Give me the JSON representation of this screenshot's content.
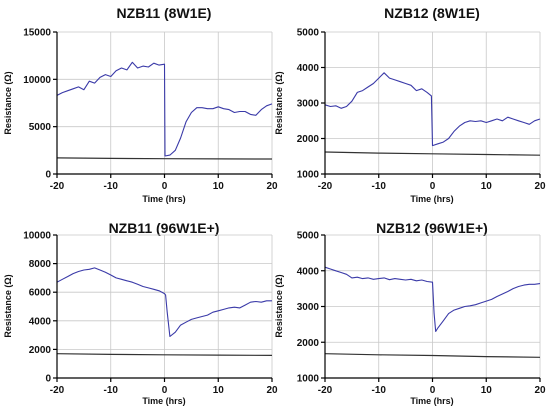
{
  "chart_data": [
    {
      "type": "line",
      "title": "NZB11 (8W1E)",
      "xlabel": "Time (hrs)",
      "ylabel": "Resistance (Ω)",
      "xlim": [
        -20,
        20
      ],
      "ylim": [
        0,
        15000
      ],
      "xticks": [
        -20,
        -10,
        0,
        10,
        20
      ],
      "yticks": [
        0,
        5000,
        10000,
        15000
      ],
      "grid": true,
      "series": [
        {
          "color": "#3a3aa8",
          "points": [
            [
              -20,
              8300
            ],
            [
              -19,
              8600
            ],
            [
              -18,
              8800
            ],
            [
              -17,
              9000
            ],
            [
              -16,
              9200
            ],
            [
              -15,
              8900
            ],
            [
              -14,
              9800
            ],
            [
              -13,
              9600
            ],
            [
              -12,
              10200
            ],
            [
              -11,
              10500
            ],
            [
              -10,
              10300
            ],
            [
              -9,
              10900
            ],
            [
              -8,
              11200
            ],
            [
              -7,
              11000
            ],
            [
              -6,
              11800
            ],
            [
              -5,
              11200
            ],
            [
              -4,
              11400
            ],
            [
              -3,
              11300
            ],
            [
              -2,
              11700
            ],
            [
              -1,
              11500
            ],
            [
              0,
              11600
            ],
            [
              0.1,
              1900
            ],
            [
              1,
              2000
            ],
            [
              2,
              2500
            ],
            [
              3,
              3800
            ],
            [
              4,
              5500
            ],
            [
              5,
              6500
            ],
            [
              6,
              7000
            ],
            [
              7,
              7000
            ],
            [
              8,
              6900
            ],
            [
              9,
              6900
            ],
            [
              10,
              7100
            ],
            [
              11,
              6900
            ],
            [
              12,
              6800
            ],
            [
              13,
              6500
            ],
            [
              14,
              6600
            ],
            [
              15,
              6600
            ],
            [
              16,
              6300
            ],
            [
              17,
              6200
            ],
            [
              18,
              6800
            ],
            [
              19,
              7200
            ],
            [
              20,
              7400
            ]
          ]
        },
        {
          "color": "#333333",
          "points": [
            [
              -20,
              1700
            ],
            [
              -10,
              1650
            ],
            [
              0,
              1620
            ],
            [
              10,
              1600
            ],
            [
              20,
              1580
            ]
          ]
        }
      ]
    },
    {
      "type": "line",
      "title": "NZB12 (8W1E)",
      "xlabel": "Time (hrs)",
      "ylabel": "Resistance (Ω)",
      "xlim": [
        -20,
        20
      ],
      "ylim": [
        1000,
        5000
      ],
      "xticks": [
        -20,
        -10,
        0,
        10,
        20
      ],
      "yticks": [
        1000,
        2000,
        3000,
        4000,
        5000
      ],
      "grid": true,
      "series": [
        {
          "color": "#3a3aa8",
          "points": [
            [
              -20,
              2950
            ],
            [
              -19,
              2900
            ],
            [
              -18,
              2920
            ],
            [
              -17,
              2850
            ],
            [
              -16,
              2900
            ],
            [
              -15,
              3050
            ],
            [
              -14,
              3300
            ],
            [
              -13,
              3350
            ],
            [
              -12,
              3450
            ],
            [
              -11,
              3550
            ],
            [
              -10,
              3700
            ],
            [
              -9,
              3850
            ],
            [
              -8,
              3700
            ],
            [
              -7,
              3650
            ],
            [
              -6,
              3600
            ],
            [
              -5,
              3550
            ],
            [
              -4,
              3500
            ],
            [
              -3,
              3350
            ],
            [
              -2,
              3400
            ],
            [
              -1,
              3300
            ],
            [
              -0.2,
              3200
            ],
            [
              0,
              1800
            ],
            [
              1,
              1850
            ],
            [
              2,
              1900
            ],
            [
              3,
              2000
            ],
            [
              4,
              2200
            ],
            [
              5,
              2350
            ],
            [
              6,
              2450
            ],
            [
              7,
              2500
            ],
            [
              8,
              2480
            ],
            [
              9,
              2500
            ],
            [
              10,
              2450
            ],
            [
              11,
              2500
            ],
            [
              12,
              2550
            ],
            [
              13,
              2500
            ],
            [
              14,
              2600
            ],
            [
              15,
              2550
            ],
            [
              16,
              2500
            ],
            [
              17,
              2450
            ],
            [
              18,
              2400
            ],
            [
              19,
              2500
            ],
            [
              20,
              2550
            ]
          ]
        },
        {
          "color": "#333333",
          "points": [
            [
              -20,
              1620
            ],
            [
              -10,
              1590
            ],
            [
              0,
              1570
            ],
            [
              10,
              1550
            ],
            [
              20,
              1530
            ]
          ]
        }
      ]
    },
    {
      "type": "line",
      "title": "NZB11 (96W1E+)",
      "xlabel": "Time (hrs)",
      "ylabel": "Resistance (Ω)",
      "xlim": [
        -20,
        20
      ],
      "ylim": [
        0,
        10000
      ],
      "xticks": [
        -20,
        -10,
        0,
        10,
        20
      ],
      "yticks": [
        0,
        2000,
        4000,
        6000,
        8000,
        10000
      ],
      "grid": true,
      "series": [
        {
          "color": "#3a3aa8",
          "points": [
            [
              -20,
              6700
            ],
            [
              -19,
              6900
            ],
            [
              -18,
              7100
            ],
            [
              -17,
              7300
            ],
            [
              -16,
              7450
            ],
            [
              -15,
              7550
            ],
            [
              -14,
              7600
            ],
            [
              -13,
              7700
            ],
            [
              -12,
              7550
            ],
            [
              -11,
              7400
            ],
            [
              -10,
              7200
            ],
            [
              -9,
              7000
            ],
            [
              -8,
              6900
            ],
            [
              -7,
              6800
            ],
            [
              -6,
              6700
            ],
            [
              -5,
              6550
            ],
            [
              -4,
              6400
            ],
            [
              -3,
              6300
            ],
            [
              -2,
              6200
            ],
            [
              -1,
              6100
            ],
            [
              0,
              5900
            ],
            [
              0.2,
              5800
            ],
            [
              0.5,
              4600
            ],
            [
              1,
              2900
            ],
            [
              2,
              3200
            ],
            [
              3,
              3700
            ],
            [
              4,
              3900
            ],
            [
              5,
              4100
            ],
            [
              6,
              4200
            ],
            [
              7,
              4300
            ],
            [
              8,
              4400
            ],
            [
              9,
              4600
            ],
            [
              10,
              4700
            ],
            [
              11,
              4800
            ],
            [
              12,
              4900
            ],
            [
              13,
              4950
            ],
            [
              14,
              4900
            ],
            [
              15,
              5100
            ],
            [
              16,
              5300
            ],
            [
              17,
              5350
            ],
            [
              18,
              5300
            ],
            [
              19,
              5400
            ],
            [
              20,
              5400
            ]
          ]
        },
        {
          "color": "#333333",
          "points": [
            [
              -20,
              1700
            ],
            [
              -10,
              1650
            ],
            [
              0,
              1620
            ],
            [
              10,
              1600
            ],
            [
              20,
              1580
            ]
          ]
        }
      ]
    },
    {
      "type": "line",
      "title": "NZB12 (96W1E+)",
      "xlabel": "Time (hrs)",
      "ylabel": "Resistance (Ω)",
      "xlim": [
        -20,
        20
      ],
      "ylim": [
        1000,
        5000
      ],
      "xticks": [
        -20,
        -10,
        0,
        10,
        20
      ],
      "yticks": [
        1000,
        2000,
        3000,
        4000,
        5000
      ],
      "grid": true,
      "series": [
        {
          "color": "#3a3aa8",
          "points": [
            [
              -20,
              4100
            ],
            [
              -19,
              4050
            ],
            [
              -18,
              4000
            ],
            [
              -17,
              3950
            ],
            [
              -16,
              3900
            ],
            [
              -15,
              3800
            ],
            [
              -14,
              3820
            ],
            [
              -13,
              3780
            ],
            [
              -12,
              3800
            ],
            [
              -11,
              3760
            ],
            [
              -10,
              3780
            ],
            [
              -9,
              3800
            ],
            [
              -8,
              3750
            ],
            [
              -7,
              3780
            ],
            [
              -6,
              3760
            ],
            [
              -5,
              3740
            ],
            [
              -4,
              3760
            ],
            [
              -3,
              3720
            ],
            [
              -2,
              3740
            ],
            [
              -1,
              3700
            ],
            [
              0,
              3680
            ],
            [
              0.3,
              2800
            ],
            [
              0.6,
              2300
            ],
            [
              1,
              2400
            ],
            [
              2,
              2600
            ],
            [
              3,
              2800
            ],
            [
              4,
              2900
            ],
            [
              5,
              2950
            ],
            [
              6,
              3000
            ],
            [
              7,
              3020
            ],
            [
              8,
              3050
            ],
            [
              9,
              3100
            ],
            [
              10,
              3150
            ],
            [
              11,
              3200
            ],
            [
              12,
              3280
            ],
            [
              13,
              3350
            ],
            [
              14,
              3420
            ],
            [
              15,
              3500
            ],
            [
              16,
              3560
            ],
            [
              17,
              3600
            ],
            [
              18,
              3620
            ],
            [
              19,
              3620
            ],
            [
              20,
              3640
            ]
          ]
        },
        {
          "color": "#333333",
          "points": [
            [
              -20,
              1680
            ],
            [
              -10,
              1650
            ],
            [
              0,
              1630
            ],
            [
              10,
              1600
            ],
            [
              20,
              1580
            ]
          ]
        }
      ]
    }
  ]
}
